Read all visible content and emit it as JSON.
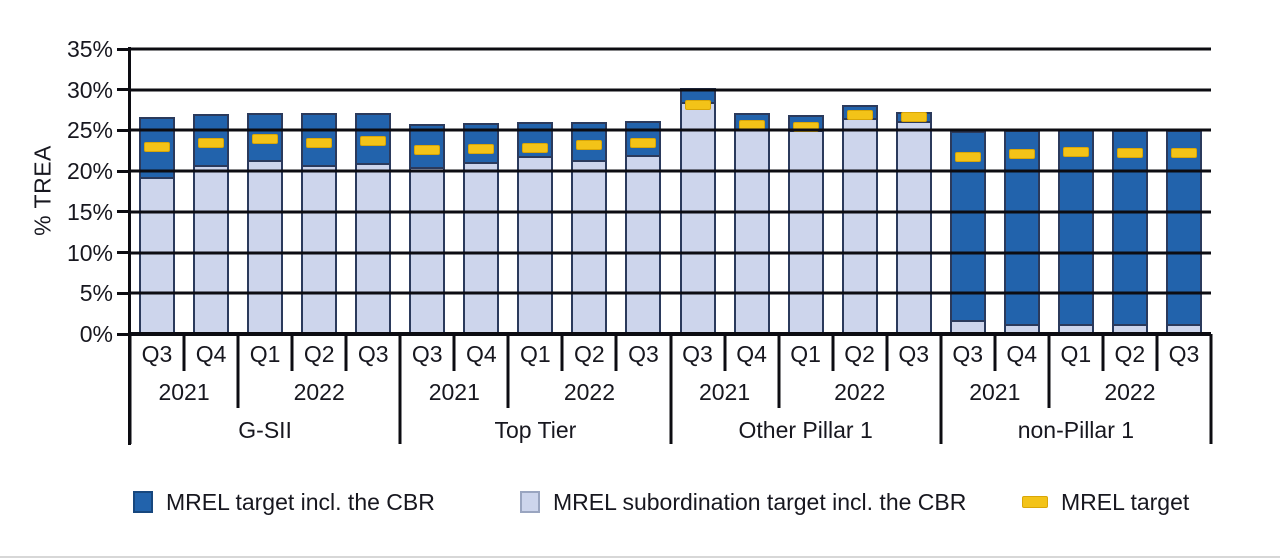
{
  "chart_data": {
    "type": "bar",
    "stacked": true,
    "title": "",
    "ylabel": "% TREA",
    "ylim": [
      0,
      35
    ],
    "ytick_step": 5,
    "ytick_labels": [
      "0%",
      "5%",
      "10%",
      "15%",
      "20%",
      "25%",
      "30%",
      "35%"
    ],
    "grid": true,
    "legend_position": "bottom",
    "series_names": [
      "MREL target incl. the CBR",
      "MREL subordination target incl. the CBR",
      "MREL target"
    ],
    "groups": [
      {
        "label": "G-SII",
        "year_spans": [
          {
            "label": "2021",
            "count": 2
          },
          {
            "label": "2022",
            "count": 3
          }
        ],
        "bars": [
          {
            "quarter": "Q3",
            "year": "2021",
            "mrel_target_incl_cbr": 26.7,
            "subordination_target_incl_cbr": 19.2,
            "mrel_target": 23.0
          },
          {
            "quarter": "Q4",
            "year": "2021",
            "mrel_target_incl_cbr": 27.0,
            "subordination_target_incl_cbr": 20.7,
            "mrel_target": 23.5
          },
          {
            "quarter": "Q1",
            "year": "2022",
            "mrel_target_incl_cbr": 27.2,
            "subordination_target_incl_cbr": 21.3,
            "mrel_target": 23.9
          },
          {
            "quarter": "Q2",
            "year": "2022",
            "mrel_target_incl_cbr": 27.2,
            "subordination_target_incl_cbr": 20.6,
            "mrel_target": 23.5
          },
          {
            "quarter": "Q3",
            "year": "2022",
            "mrel_target_incl_cbr": 27.2,
            "subordination_target_incl_cbr": 20.9,
            "mrel_target": 23.7
          }
        ]
      },
      {
        "label": "Top Tier",
        "year_spans": [
          {
            "label": "2021",
            "count": 2
          },
          {
            "label": "2022",
            "count": 3
          }
        ],
        "bars": [
          {
            "quarter": "Q3",
            "year": "2021",
            "mrel_target_incl_cbr": 25.8,
            "subordination_target_incl_cbr": 20.4,
            "mrel_target": 22.6
          },
          {
            "quarter": "Q4",
            "year": "2021",
            "mrel_target_incl_cbr": 25.9,
            "subordination_target_incl_cbr": 21.0,
            "mrel_target": 22.7
          },
          {
            "quarter": "Q1",
            "year": "2022",
            "mrel_target_incl_cbr": 26.0,
            "subordination_target_incl_cbr": 21.8,
            "mrel_target": 22.9
          },
          {
            "quarter": "Q2",
            "year": "2022",
            "mrel_target_incl_cbr": 26.0,
            "subordination_target_incl_cbr": 21.3,
            "mrel_target": 23.2
          },
          {
            "quarter": "Q3",
            "year": "2022",
            "mrel_target_incl_cbr": 26.1,
            "subordination_target_incl_cbr": 21.9,
            "mrel_target": 23.5
          }
        ]
      },
      {
        "label": "Other Pillar 1",
        "year_spans": [
          {
            "label": "2021",
            "count": 2
          },
          {
            "label": "2022",
            "count": 3
          }
        ],
        "bars": [
          {
            "quarter": "Q3",
            "year": "2021",
            "mrel_target_incl_cbr": 30.2,
            "subordination_target_incl_cbr": 28.5,
            "mrel_target": 28.1
          },
          {
            "quarter": "Q4",
            "year": "2021",
            "mrel_target_incl_cbr": 27.2,
            "subordination_target_incl_cbr": 25.2,
            "mrel_target": 25.7
          },
          {
            "quarter": "Q1",
            "year": "2022",
            "mrel_target_incl_cbr": 26.9,
            "subordination_target_incl_cbr": 25.0,
            "mrel_target": 25.4
          },
          {
            "quarter": "Q2",
            "year": "2022",
            "mrel_target_incl_cbr": 28.1,
            "subordination_target_incl_cbr": 26.5,
            "mrel_target": 26.9
          },
          {
            "quarter": "Q3",
            "year": "2022",
            "mrel_target_incl_cbr": 27.3,
            "subordination_target_incl_cbr": 26.1,
            "mrel_target": 26.6
          }
        ]
      },
      {
        "label": "non-Pillar 1",
        "year_spans": [
          {
            "label": "2021",
            "count": 2
          },
          {
            "label": "2022",
            "count": 3
          }
        ],
        "bars": [
          {
            "quarter": "Q3",
            "year": "2021",
            "mrel_target_incl_cbr": 24.9,
            "subordination_target_incl_cbr": 1.3,
            "mrel_target": 21.8
          },
          {
            "quarter": "Q4",
            "year": "2021",
            "mrel_target_incl_cbr": 25.0,
            "subordination_target_incl_cbr": 0.8,
            "mrel_target": 22.1
          },
          {
            "quarter": "Q1",
            "year": "2022",
            "mrel_target_incl_cbr": 25.2,
            "subordination_target_incl_cbr": 0.8,
            "mrel_target": 22.3
          },
          {
            "quarter": "Q2",
            "year": "2022",
            "mrel_target_incl_cbr": 25.1,
            "subordination_target_incl_cbr": 0.8,
            "mrel_target": 22.2
          },
          {
            "quarter": "Q3",
            "year": "2022",
            "mrel_target_incl_cbr": 25.1,
            "subordination_target_incl_cbr": 0.8,
            "mrel_target": 22.2
          }
        ]
      }
    ],
    "legend": [
      {
        "label": "MREL target incl. the CBR",
        "shape": "square",
        "color": "#2263ac",
        "border": "#17477e"
      },
      {
        "label": "MREL subordination target incl. the CBR",
        "shape": "square",
        "color": "#cdd5ec",
        "border": "#9aa5c0"
      },
      {
        "label": "MREL target",
        "shape": "dash",
        "color": "#f3c318",
        "border": "#d9a607"
      }
    ],
    "colors": {
      "mrel_target_incl_cbr": "#2263ac",
      "subordination_target_incl_cbr": "#cdd5ec",
      "mrel_target": "#f3c318",
      "bar_border": "#2b3a5c",
      "grid": "#0c0c12",
      "text": "#17171f"
    }
  }
}
